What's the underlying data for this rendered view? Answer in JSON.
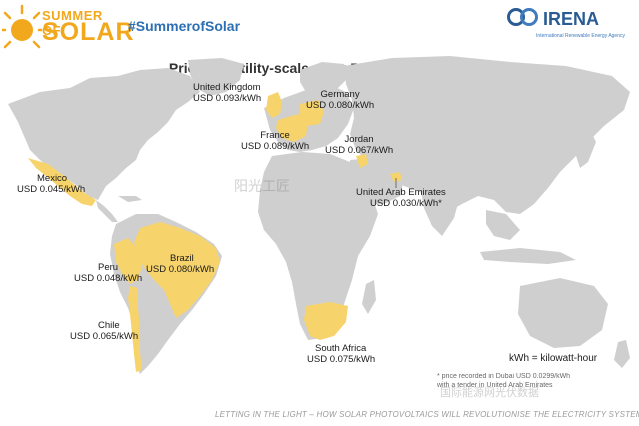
{
  "header": {
    "logo_top": "SUMMER OF",
    "logo_bottom": "SOLAR",
    "hashtag": "#SummerofSolar",
    "org_name": "IRENA",
    "org_subtitle": "International Renewable Energy Agency"
  },
  "map": {
    "title": "Prices of utility-scale solar PV in key markets",
    "colors": {
      "land": "#cfcfcf",
      "highlight": "#f7d36b",
      "ocean": "#ffffff",
      "accent": "#f2a81d"
    },
    "markets": [
      {
        "country": "United Kingdom",
        "price": "USD 0.093/kWh"
      },
      {
        "country": "Germany",
        "price": "USD 0.080/kWh"
      },
      {
        "country": "France",
        "price": "USD 0.089/kWh"
      },
      {
        "country": "Jordan",
        "price": "USD 0.067/kWh"
      },
      {
        "country": "United Arab Emirates",
        "price": "USD 0.030/kWh*"
      },
      {
        "country": "Mexico",
        "price": "USD 0.045/kWh"
      },
      {
        "country": "Brazil",
        "price": "USD 0.080/kWh"
      },
      {
        "country": "Peru",
        "price": "USD 0.048/kWh"
      },
      {
        "country": "Chile",
        "price": "USD 0.065/kWh"
      },
      {
        "country": "South Africa",
        "price": "USD 0.075/kWh"
      }
    ],
    "unit_note": "kWh = kilowatt-hour",
    "footnote_line1": "* price recorded in Dubai USD 0.0299/kWh",
    "footnote_line2": "with a tender in United Arab Emirates"
  },
  "footer": "LETTING IN THE LIGHT – HOW SOLAR PHOTOVOLTAICS WILL REVOLUTIONISE THE ELECTRICITY SYSTEM",
  "watermarks": [
    "阳光工匠",
    "国际能源网光伏数据"
  ]
}
